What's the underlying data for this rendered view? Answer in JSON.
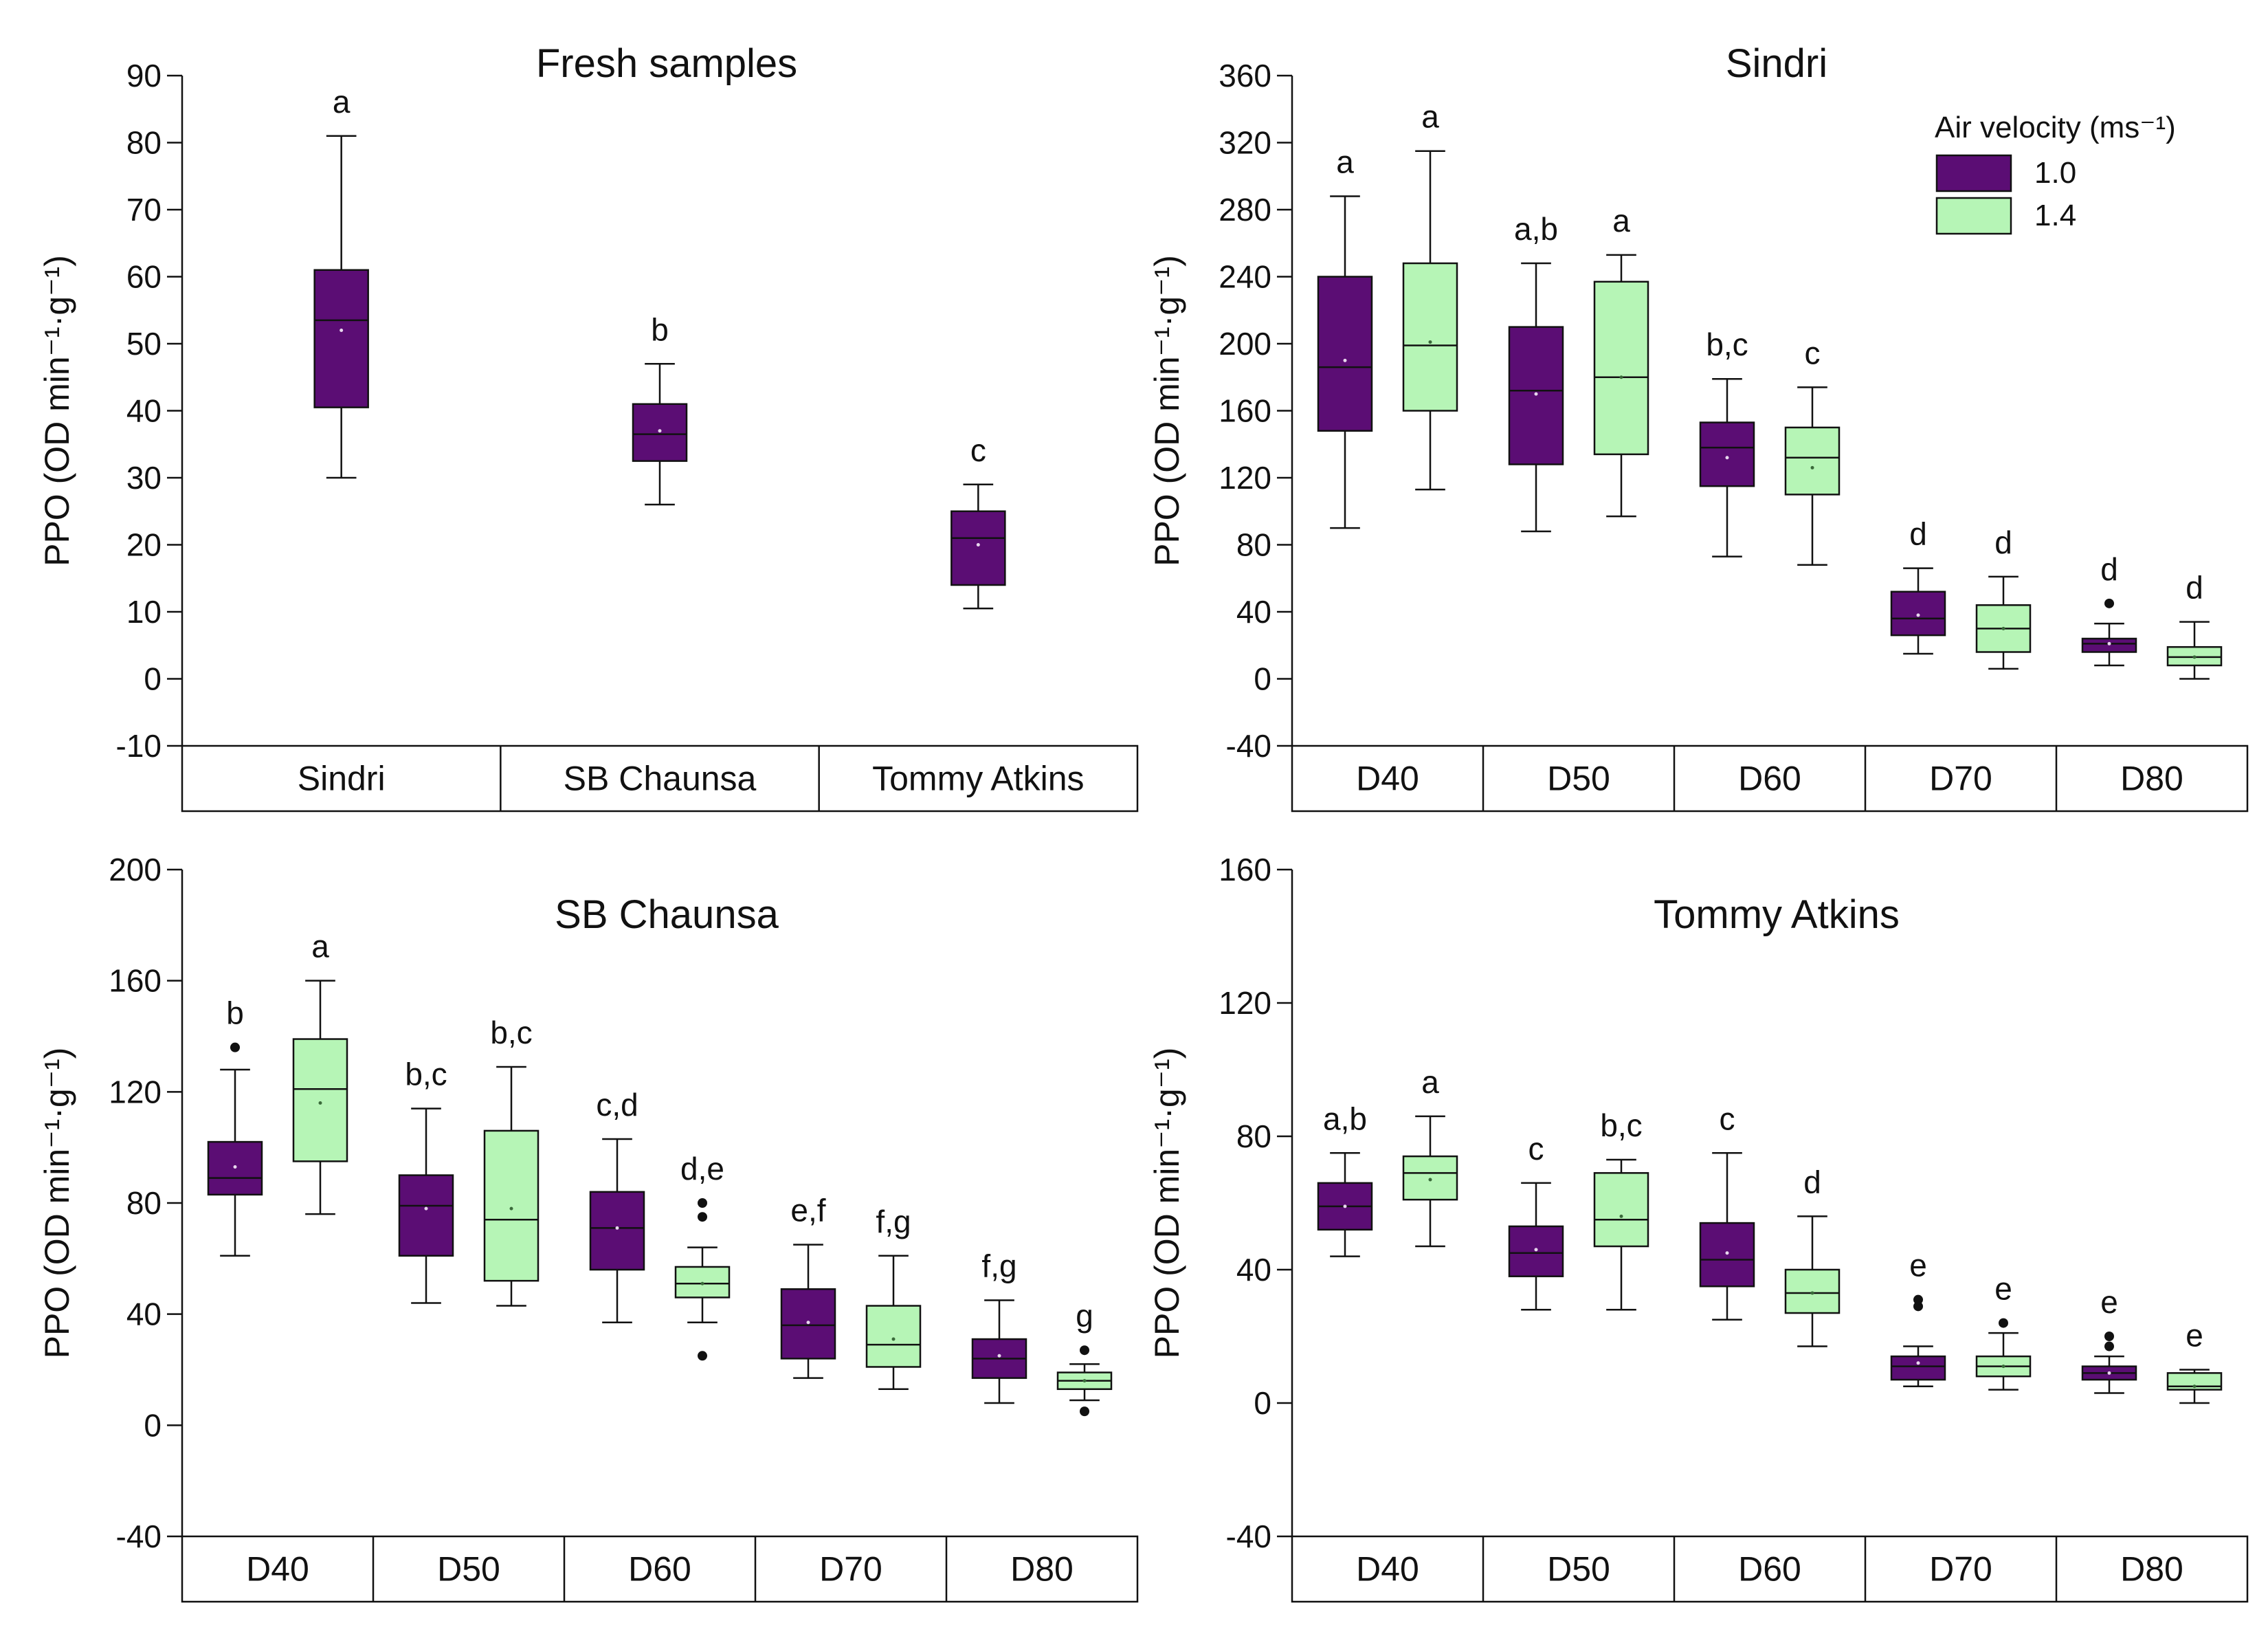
{
  "colors": {
    "v10": "#5b0d74",
    "v14": "#b6f5b6",
    "stroke": "#111111"
  },
  "legend": {
    "title": "Air velocity (ms⁻¹)",
    "items": [
      {
        "label": "1.0",
        "color": "#5b0d74"
      },
      {
        "label": "1.4",
        "color": "#b6f5b6"
      }
    ]
  },
  "chart_data": [
    {
      "type": "box",
      "title": "Fresh samples",
      "ylabel": "PPO (OD min⁻¹·g⁻¹)",
      "ylim": [
        -10,
        90
      ],
      "yticks": [
        -10,
        0,
        10,
        20,
        30,
        40,
        50,
        60,
        70,
        80,
        90
      ],
      "categories": [
        "Sindri",
        "SB Chaunsa",
        "Tommy Atkins"
      ],
      "series": [
        {
          "key": "v10",
          "boxes": [
            {
              "min": 30,
              "q1": 40.5,
              "median": 53.5,
              "q3": 61,
              "max": 81,
              "mean": 52,
              "outliers": [],
              "letter": "a"
            },
            {
              "min": 26,
              "q1": 32.5,
              "median": 36.5,
              "q3": 41,
              "max": 47,
              "mean": 37,
              "outliers": [],
              "letter": "b"
            },
            {
              "min": 10.5,
              "q1": 14,
              "median": 21,
              "q3": 25,
              "max": 29,
              "mean": 20,
              "outliers": [],
              "letter": "c"
            }
          ]
        }
      ]
    },
    {
      "type": "box",
      "title": "Sindri",
      "ylabel": "PPO (OD min⁻¹·g⁻¹)",
      "ylim": [
        -40,
        360
      ],
      "yticks": [
        -40,
        0,
        40,
        80,
        120,
        160,
        200,
        240,
        280,
        320,
        360
      ],
      "categories": [
        "D40",
        "D50",
        "D60",
        "D70",
        "D80"
      ],
      "legend": true,
      "series": [
        {
          "key": "v10",
          "name": "1.0",
          "boxes": [
            {
              "min": 90,
              "q1": 148,
              "median": 186,
              "q3": 240,
              "max": 288,
              "mean": 190,
              "outliers": [],
              "letter": "a"
            },
            {
              "min": 88,
              "q1": 128,
              "median": 172,
              "q3": 210,
              "max": 248,
              "mean": 170,
              "outliers": [],
              "letter": "a,b"
            },
            {
              "min": 73,
              "q1": 115,
              "median": 138,
              "q3": 153,
              "max": 179,
              "mean": 132,
              "outliers": [],
              "letter": "b,c"
            },
            {
              "min": 15,
              "q1": 26,
              "median": 36,
              "q3": 52,
              "max": 66,
              "mean": 38,
              "outliers": [],
              "letter": "d"
            },
            {
              "min": 8,
              "q1": 16,
              "median": 21,
              "q3": 24,
              "max": 33,
              "mean": 21,
              "outliers": [
                45
              ],
              "letter": "d"
            }
          ]
        },
        {
          "key": "v14",
          "name": "1.4",
          "boxes": [
            {
              "min": 113,
              "q1": 160,
              "median": 199,
              "q3": 248,
              "max": 315,
              "mean": 201,
              "outliers": [],
              "letter": "a"
            },
            {
              "min": 97,
              "q1": 134,
              "median": 180,
              "q3": 237,
              "max": 253,
              "mean": 180,
              "outliers": [],
              "letter": "a"
            },
            {
              "min": 68,
              "q1": 110,
              "median": 132,
              "q3": 150,
              "max": 174,
              "mean": 126,
              "outliers": [],
              "letter": "c"
            },
            {
              "min": 6,
              "q1": 16,
              "median": 30,
              "q3": 44,
              "max": 61,
              "mean": 30,
              "outliers": [],
              "letter": "d"
            },
            {
              "min": 0,
              "q1": 8,
              "median": 13,
              "q3": 19,
              "max": 34,
              "mean": 13,
              "outliers": [],
              "letter": "d"
            }
          ]
        }
      ]
    },
    {
      "type": "box",
      "title": "SB Chaunsa",
      "ylabel": "PPO (OD min⁻¹·g⁻¹)",
      "ylim": [
        -40,
        200
      ],
      "yticks": [
        -40,
        0,
        40,
        80,
        120,
        160,
        200
      ],
      "categories": [
        "D40",
        "D50",
        "D60",
        "D70",
        "D80"
      ],
      "series": [
        {
          "key": "v10",
          "boxes": [
            {
              "min": 61,
              "q1": 83,
              "median": 89,
              "q3": 102,
              "max": 128,
              "mean": 93,
              "outliers": [
                136
              ],
              "letter": "b"
            },
            {
              "min": 44,
              "q1": 61,
              "median": 79,
              "q3": 90,
              "max": 114,
              "mean": 78,
              "outliers": [],
              "letter": "b,c"
            },
            {
              "min": 37,
              "q1": 56,
              "median": 71,
              "q3": 84,
              "max": 103,
              "mean": 71,
              "outliers": [],
              "letter": "c,d"
            },
            {
              "min": 17,
              "q1": 24,
              "median": 36,
              "q3": 49,
              "max": 65,
              "mean": 37,
              "outliers": [],
              "letter": "e,f"
            },
            {
              "min": 8,
              "q1": 17,
              "median": 24,
              "q3": 31,
              "max": 45,
              "mean": 25,
              "outliers": [],
              "letter": "f,g"
            }
          ]
        },
        {
          "key": "v14",
          "boxes": [
            {
              "min": 76,
              "q1": 95,
              "median": 121,
              "q3": 139,
              "max": 160,
              "mean": 116,
              "outliers": [],
              "letter": "a"
            },
            {
              "min": 43,
              "q1": 52,
              "median": 74,
              "q3": 106,
              "max": 129,
              "mean": 78,
              "outliers": [],
              "letter": "b,c"
            },
            {
              "min": 37,
              "q1": 46,
              "median": 51,
              "q3": 57,
              "max": 64,
              "mean": 51,
              "outliers": [
                25,
                75,
                80
              ],
              "letter": "d,e"
            },
            {
              "min": 13,
              "q1": 21,
              "median": 29,
              "q3": 43,
              "max": 61,
              "mean": 31,
              "outliers": [],
              "letter": "f,g"
            },
            {
              "min": 9,
              "q1": 13,
              "median": 16,
              "q3": 19,
              "max": 22,
              "mean": 16,
              "outliers": [
                5,
                27
              ],
              "letter": "g"
            }
          ]
        }
      ]
    },
    {
      "type": "box",
      "title": "Tommy Atkins",
      "ylabel": "PPO (OD min⁻¹·g⁻¹)",
      "ylim": [
        -40,
        160
      ],
      "yticks": [
        -40,
        0,
        40,
        80,
        120,
        160
      ],
      "categories": [
        "D40",
        "D50",
        "D60",
        "D70",
        "D80"
      ],
      "series": [
        {
          "key": "v10",
          "boxes": [
            {
              "min": 44,
              "q1": 52,
              "median": 59,
              "q3": 66,
              "max": 75,
              "mean": 59,
              "outliers": [],
              "letter": "a,b"
            },
            {
              "min": 28,
              "q1": 38,
              "median": 45,
              "q3": 53,
              "max": 66,
              "mean": 46,
              "outliers": [],
              "letter": "c"
            },
            {
              "min": 25,
              "q1": 35,
              "median": 43,
              "q3": 54,
              "max": 75,
              "mean": 45,
              "outliers": [],
              "letter": "c"
            },
            {
              "min": 5,
              "q1": 7,
              "median": 11,
              "q3": 14,
              "max": 17,
              "mean": 12,
              "outliers": [
                29,
                31
              ],
              "letter": "e"
            },
            {
              "min": 3,
              "q1": 7,
              "median": 9,
              "q3": 11,
              "max": 14,
              "mean": 9,
              "outliers": [
                17,
                20
              ],
              "letter": "e"
            }
          ]
        },
        {
          "key": "v14",
          "boxes": [
            {
              "min": 47,
              "q1": 61,
              "median": 69,
              "q3": 74,
              "max": 86,
              "mean": 67,
              "outliers": [],
              "letter": "a"
            },
            {
              "min": 28,
              "q1": 47,
              "median": 55,
              "q3": 69,
              "max": 73,
              "mean": 56,
              "outliers": [],
              "letter": "b,c"
            },
            {
              "min": 17,
              "q1": 27,
              "median": 33,
              "q3": 40,
              "max": 56,
              "mean": 33,
              "outliers": [],
              "letter": "d"
            },
            {
              "min": 4,
              "q1": 8,
              "median": 11,
              "q3": 14,
              "max": 21,
              "mean": 11,
              "outliers": [
                24
              ],
              "letter": "e"
            },
            {
              "min": 0,
              "q1": 4,
              "median": 5,
              "q3": 9,
              "max": 10,
              "mean": 5,
              "outliers": [],
              "letter": "e"
            }
          ]
        }
      ]
    }
  ]
}
